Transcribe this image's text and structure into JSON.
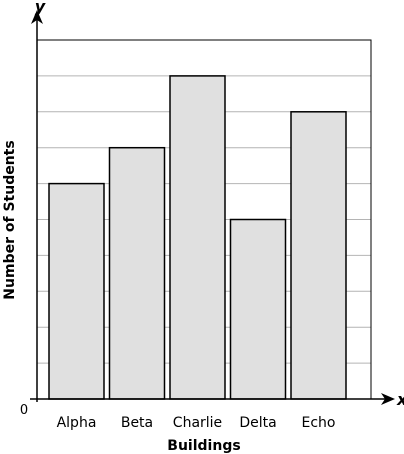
{
  "chart_data": {
    "type": "bar",
    "categories": [
      "Alpha",
      "Beta",
      "Charlie",
      "Delta",
      "Echo"
    ],
    "values": [
      6,
      7,
      9,
      5,
      8
    ],
    "xlabel": "Buildings",
    "ylabel": "Number of Students",
    "x_axis_letter": "x",
    "y_axis_letter": "y",
    "origin_label": "0",
    "ylim": [
      0,
      10
    ],
    "grid": true,
    "y_tick_labels": false,
    "colors": {
      "bar_fill": "#e0e0e0",
      "bar_stroke": "#000000",
      "grid": "#b4b4b4",
      "axis": "#000000"
    }
  }
}
